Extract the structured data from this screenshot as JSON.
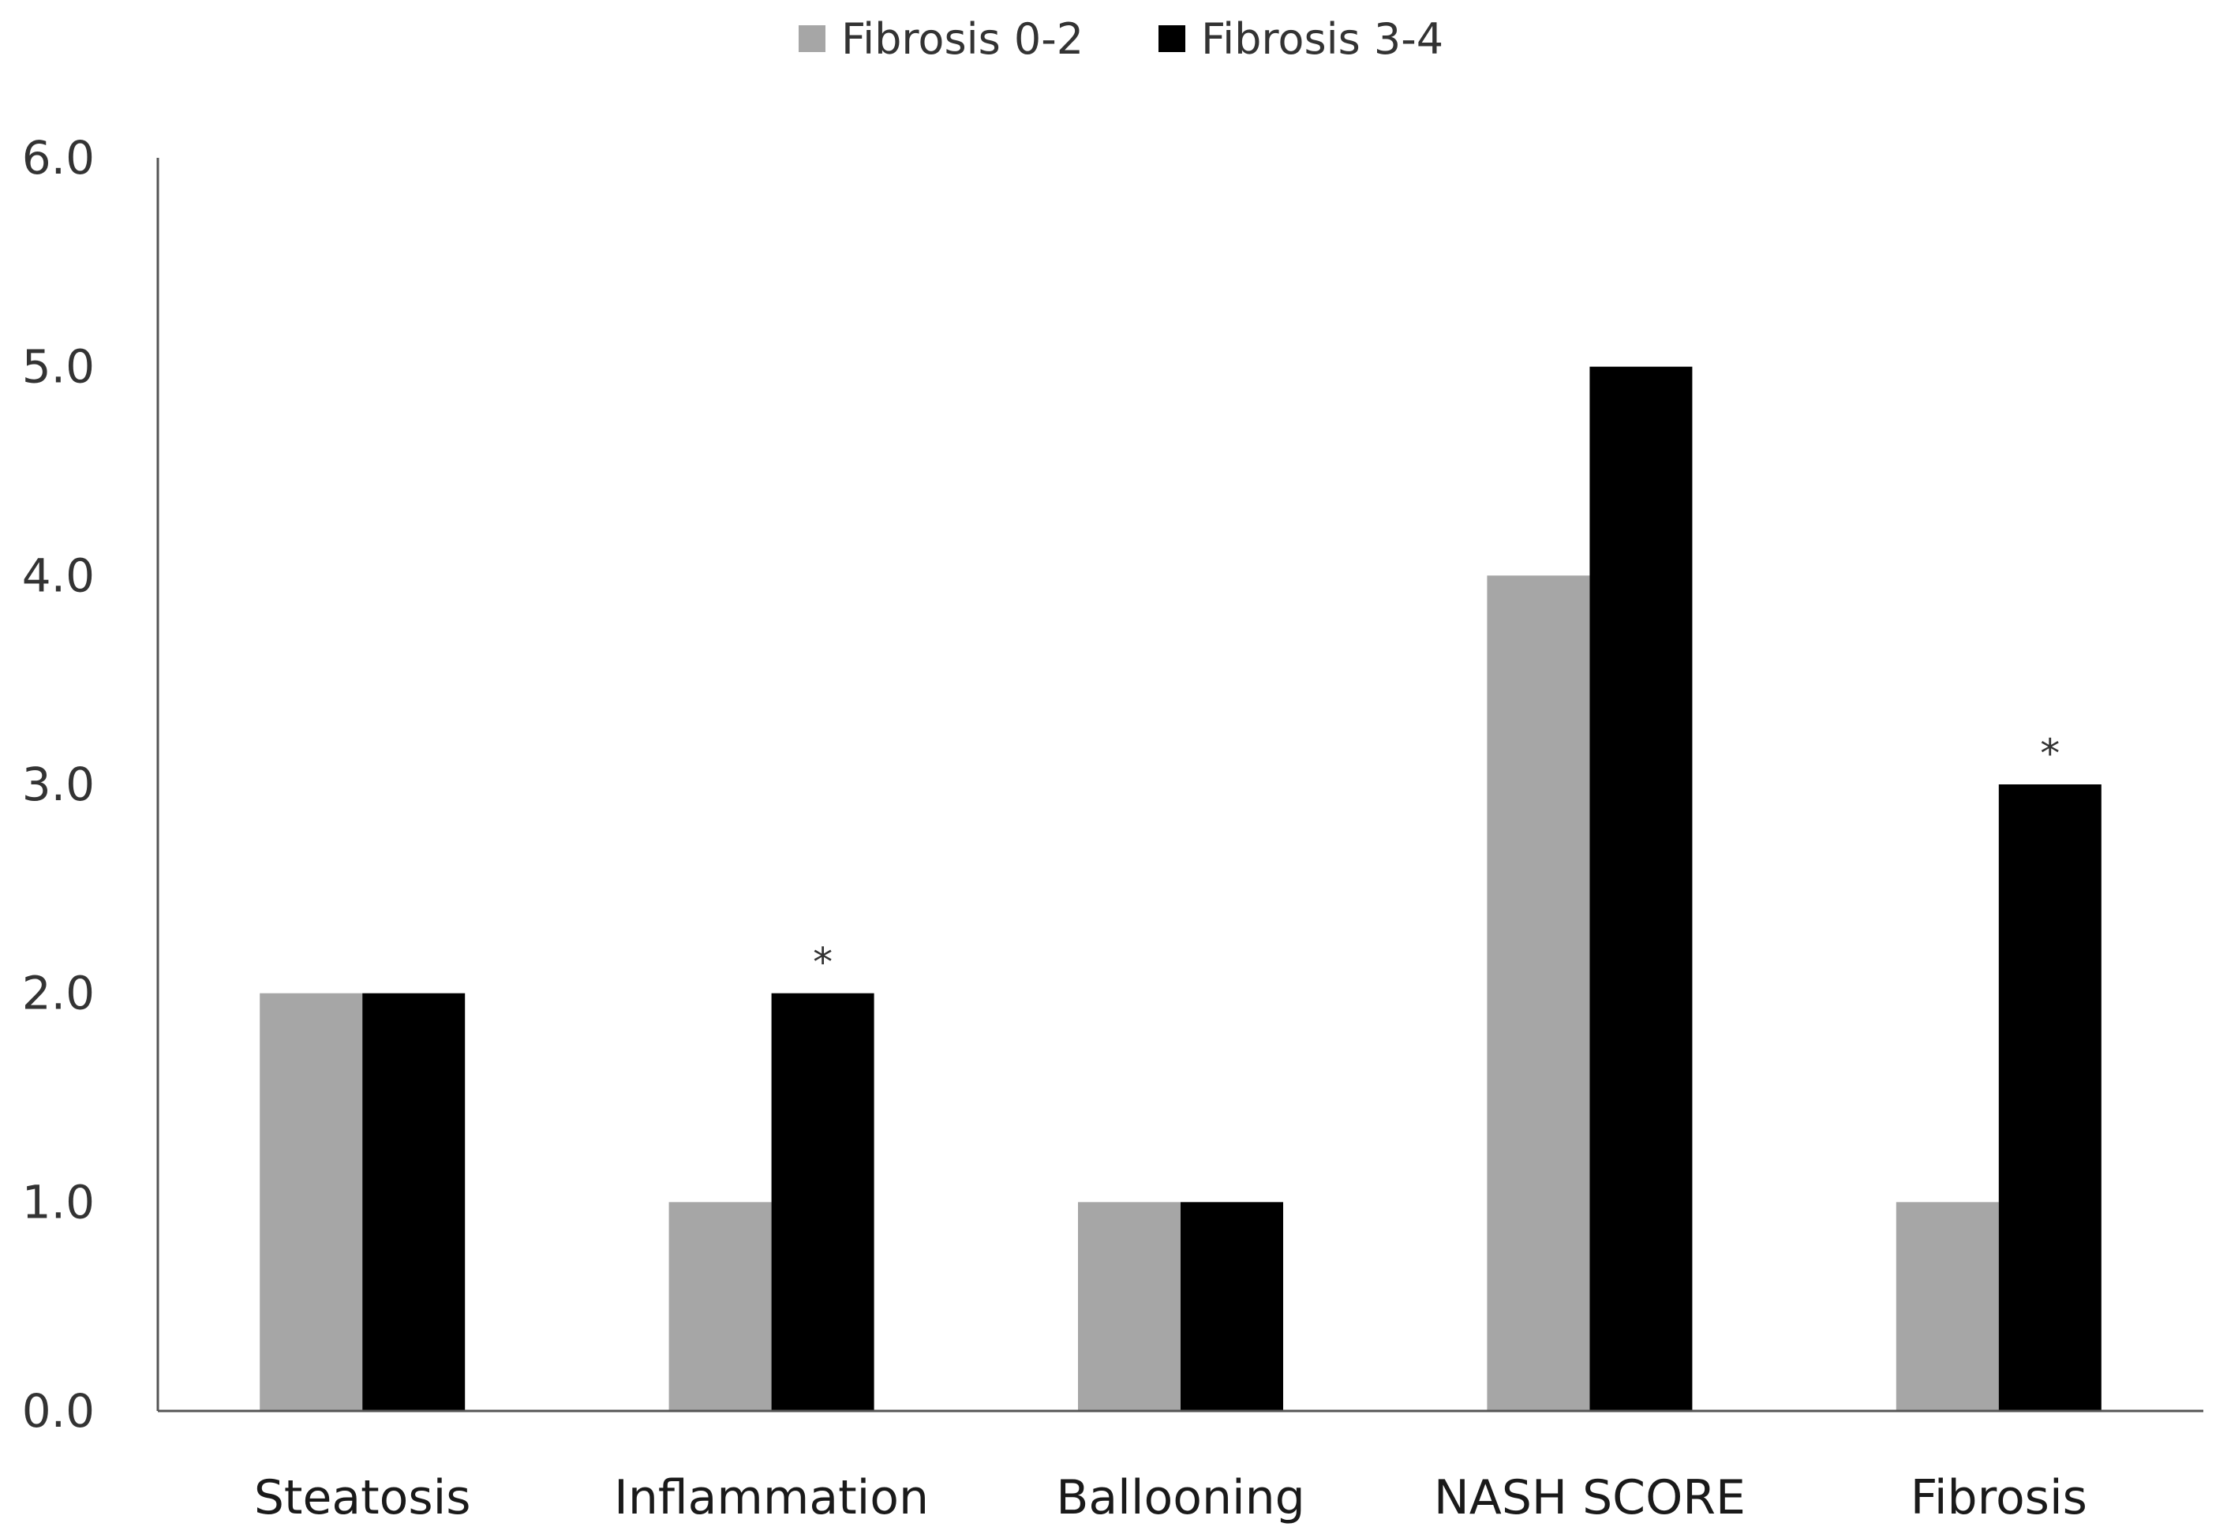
{
  "chart_data": {
    "type": "bar",
    "title": "",
    "xlabel": "",
    "ylabel": "",
    "categories": [
      "Steatosis",
      "Inflammation",
      "Ballooning",
      "NASH SCORE",
      "Fibrosis"
    ],
    "series": [
      {
        "name": "Fibrosis 0-2",
        "color": "#a6a6a6",
        "values": [
          2.0,
          1.0,
          1.0,
          4.0,
          1.0
        ]
      },
      {
        "name": "Fibrosis 3-4",
        "color": "#000000",
        "values": [
          2.0,
          2.0,
          1.0,
          5.0,
          3.0
        ]
      }
    ],
    "ylim": [
      0,
      6
    ],
    "yticks": [
      "0.0",
      "1.0",
      "2.0",
      "3.0",
      "4.0",
      "5.0",
      "6.0"
    ],
    "grid": false,
    "legend_position": "top-center",
    "annotations": [
      {
        "category": "Inflammation",
        "series": "Fibrosis 3-4",
        "text": "*"
      },
      {
        "category": "Fibrosis",
        "series": "Fibrosis 3-4",
        "text": "*"
      }
    ]
  }
}
